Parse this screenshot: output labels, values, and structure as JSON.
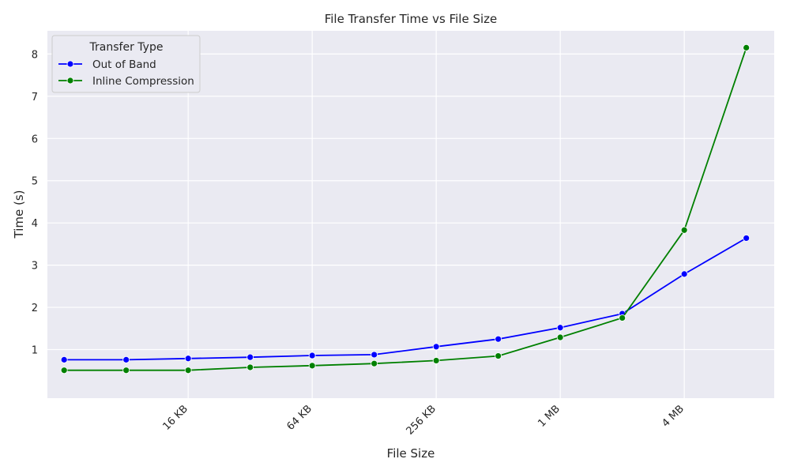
{
  "chart_data": {
    "type": "line",
    "title": "File Transfer Time vs File Size",
    "xlabel": "File Size",
    "ylabel": "Time (s)",
    "x_scale": "log2",
    "x_unit": "KB",
    "x": [
      4,
      8,
      16,
      32,
      64,
      128,
      256,
      512,
      1024,
      2048,
      4096,
      8192
    ],
    "x_ticks": [
      16,
      64,
      256,
      1024,
      4096
    ],
    "x_tick_labels": [
      "16 KB",
      "64 KB",
      "256 KB",
      "1 MB",
      "4 MB"
    ],
    "y_ticks": [
      1,
      2,
      3,
      4,
      5,
      6,
      7,
      8
    ],
    "ylim": [
      -0.15,
      8.55
    ],
    "grid": true,
    "legend": {
      "title": "Transfer Type",
      "placement": "top-left"
    },
    "series": [
      {
        "name": "Out of Band",
        "color": "#0000ff",
        "values": [
          0.76,
          0.76,
          0.79,
          0.82,
          0.86,
          0.88,
          1.07,
          1.25,
          1.52,
          1.85,
          2.79,
          3.64
        ]
      },
      {
        "name": "Inline Compression",
        "color": "#008000",
        "values": [
          0.51,
          0.51,
          0.51,
          0.58,
          0.62,
          0.67,
          0.74,
          0.85,
          1.29,
          1.75,
          3.83,
          8.15
        ]
      }
    ]
  }
}
